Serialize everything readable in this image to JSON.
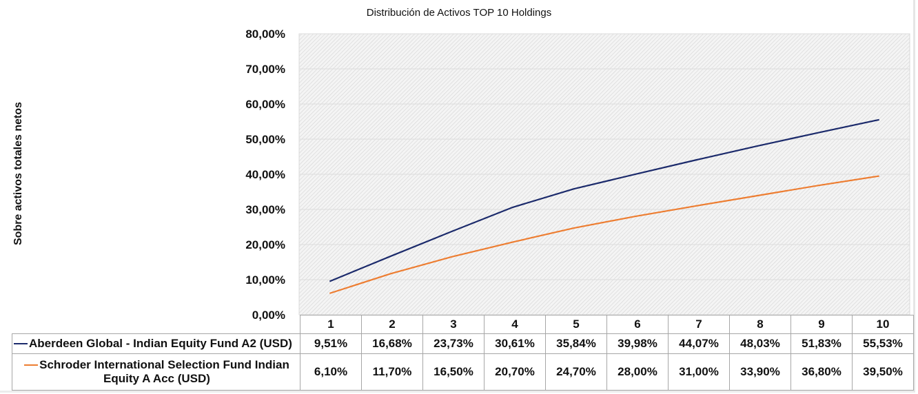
{
  "chart_data": {
    "type": "line",
    "title": "Distribución de Activos TOP 10 Holdings",
    "xlabel": "",
    "ylabel": "Sobre activos totales netos",
    "categories": [
      "1",
      "2",
      "3",
      "4",
      "5",
      "6",
      "7",
      "8",
      "9",
      "10"
    ],
    "ylim": [
      0,
      80
    ],
    "yticks": [
      0,
      10,
      20,
      30,
      40,
      50,
      60,
      70,
      80
    ],
    "ytick_labels": [
      "0,00%",
      "10,00%",
      "20,00%",
      "30,00%",
      "40,00%",
      "50,00%",
      "60,00%",
      "70,00%",
      "80,00%"
    ],
    "grid": true,
    "legend": "data-table-bottom",
    "series": [
      {
        "name": "Aberdeen Global - Indian Equity Fund A2 (USD)",
        "color": "#1b2a6b",
        "values": [
          9.51,
          16.68,
          23.73,
          30.61,
          35.84,
          39.98,
          44.07,
          48.03,
          51.83,
          55.53
        ],
        "labels": [
          "9,51%",
          "16,68%",
          "23,73%",
          "30,61%",
          "35,84%",
          "39,98%",
          "44,07%",
          "48,03%",
          "51,83%",
          "55,53%"
        ]
      },
      {
        "name_line1": "Schroder International Selection Fund Indian",
        "name_line2": "Equity A Acc (USD)",
        "name": "Schroder International Selection Fund Indian Equity A Acc (USD)",
        "color": "#ed7d31",
        "values": [
          6.1,
          11.7,
          16.5,
          20.7,
          24.7,
          28.0,
          31.0,
          33.9,
          36.8,
          39.5
        ],
        "labels": [
          "6,10%",
          "11,70%",
          "16,50%",
          "20,70%",
          "24,70%",
          "28,00%",
          "31,00%",
          "33,90%",
          "36,80%",
          "39,50%"
        ]
      }
    ]
  }
}
